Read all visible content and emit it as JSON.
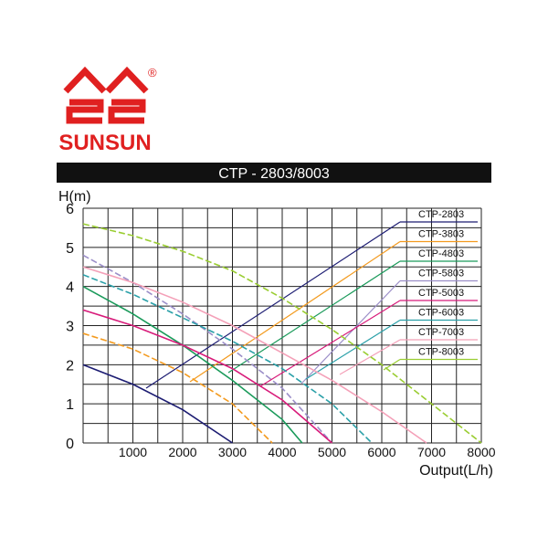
{
  "brand": {
    "name": "SUNSUN",
    "mark": "®"
  },
  "chart_data": {
    "type": "line",
    "title": "CTP - 2803/8003",
    "y_label": "H(m)",
    "x_label": "Output(L/h)",
    "xlim": [
      0,
      8000
    ],
    "xticks": [
      0,
      1000,
      2000,
      3000,
      4000,
      5000,
      6000,
      7000,
      8000
    ],
    "ylim": [
      0,
      6
    ],
    "yticks": [
      0,
      1,
      2,
      3,
      4,
      5,
      6
    ],
    "grid": true,
    "series": [
      {
        "name": "CTP-2803",
        "color": "#1c1c72",
        "x": [
          0,
          1000,
          2000,
          3000
        ],
        "values": [
          2.0,
          1.5,
          0.85,
          0
        ]
      },
      {
        "name": "CTP-3803",
        "color": "#f39a1e",
        "x": [
          0,
          1000,
          2000,
          3000,
          3800
        ],
        "values": [
          2.8,
          2.4,
          1.8,
          1.0,
          0
        ]
      },
      {
        "name": "CTP-4803",
        "color": "#1a9a5a",
        "x": [
          0,
          1000,
          2000,
          3000,
          4000,
          4400
        ],
        "values": [
          4.0,
          3.3,
          2.5,
          1.6,
          0.6,
          0
        ]
      },
      {
        "name": "CTP-5803",
        "color": "#9b8ec8",
        "x": [
          0,
          1000,
          2000,
          3000,
          4000,
          5000
        ],
        "values": [
          4.8,
          4.1,
          3.3,
          2.4,
          1.4,
          0
        ]
      },
      {
        "name": "CTP-5003",
        "color": "#d81b7a",
        "x": [
          0,
          1000,
          2000,
          3000,
          4000,
          5000
        ],
        "values": [
          3.4,
          3.0,
          2.5,
          1.9,
          1.1,
          0
        ]
      },
      {
        "name": "CTP-6003",
        "color": "#2aa0a8",
        "x": [
          0,
          1000,
          2000,
          3000,
          4000,
          5000,
          5800
        ],
        "values": [
          4.3,
          3.8,
          3.2,
          2.6,
          1.9,
          1.0,
          0
        ]
      },
      {
        "name": "CTP-7003",
        "color": "#f4a0b8",
        "x": [
          0,
          1000,
          2000,
          3000,
          4000,
          5000,
          6000,
          6900
        ],
        "values": [
          4.5,
          4.1,
          3.6,
          3.0,
          2.3,
          1.6,
          0.8,
          0
        ]
      },
      {
        "name": "CTP-8003",
        "color": "#9acd32",
        "x": [
          0,
          1000,
          2000,
          3000,
          4000,
          5000,
          6000,
          7000,
          8000
        ],
        "values": [
          5.6,
          5.3,
          4.9,
          4.4,
          3.7,
          2.9,
          2.0,
          1.0,
          0
        ]
      }
    ]
  }
}
